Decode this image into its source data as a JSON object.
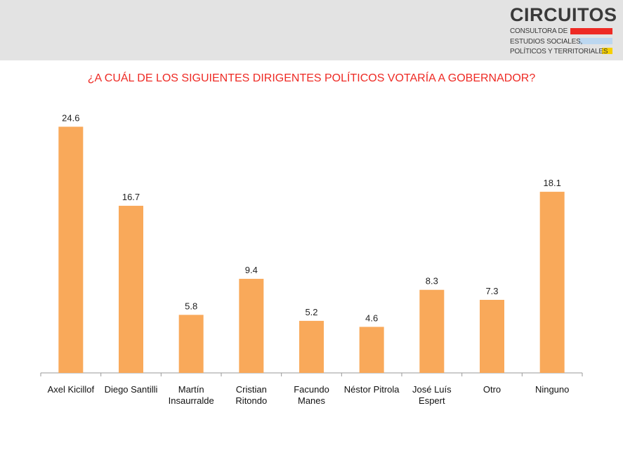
{
  "header": {
    "logo_title": "CIRCUITOS",
    "logo_line_1": "CONSULTORA DE",
    "logo_line_2": "ESTUDIOS SOCIALES,",
    "logo_line_3": "POLÍTICOS Y TERRITORIALES",
    "logo_colors": {
      "red": "#ee2a24",
      "blue": "#bcd7f0",
      "yellow": "#f6d000"
    }
  },
  "chart_data": {
    "type": "bar",
    "title": "¿A CUÁL DE LOS SIGUIENTES DIRIGENTES POLÍTICOS VOTARÍA A GOBERNADOR?",
    "categories": [
      [
        "Axel Kicillof"
      ],
      [
        "Diego Santilli"
      ],
      [
        "Martín",
        "Insaurralde"
      ],
      [
        "Cristian",
        "Ritondo"
      ],
      [
        "Facundo",
        "Manes"
      ],
      [
        "Néstor Pitrola"
      ],
      [
        "José Luís",
        "Espert"
      ],
      [
        "Otro"
      ],
      [
        "Ninguno"
      ]
    ],
    "values": [
      24.6,
      16.7,
      5.8,
      9.4,
      5.2,
      4.6,
      8.3,
      7.3,
      18.1
    ],
    "value_labels": [
      "24.6",
      "16.7",
      "5.8",
      "9.4",
      "5.2",
      "4.6",
      "8.3",
      "7.3",
      "18.1"
    ],
    "xlabel": "",
    "ylabel": "",
    "ylim": [
      0,
      25
    ],
    "grid": false,
    "bar_color": "#f9a95a",
    "title_color": "#ee2a24"
  }
}
